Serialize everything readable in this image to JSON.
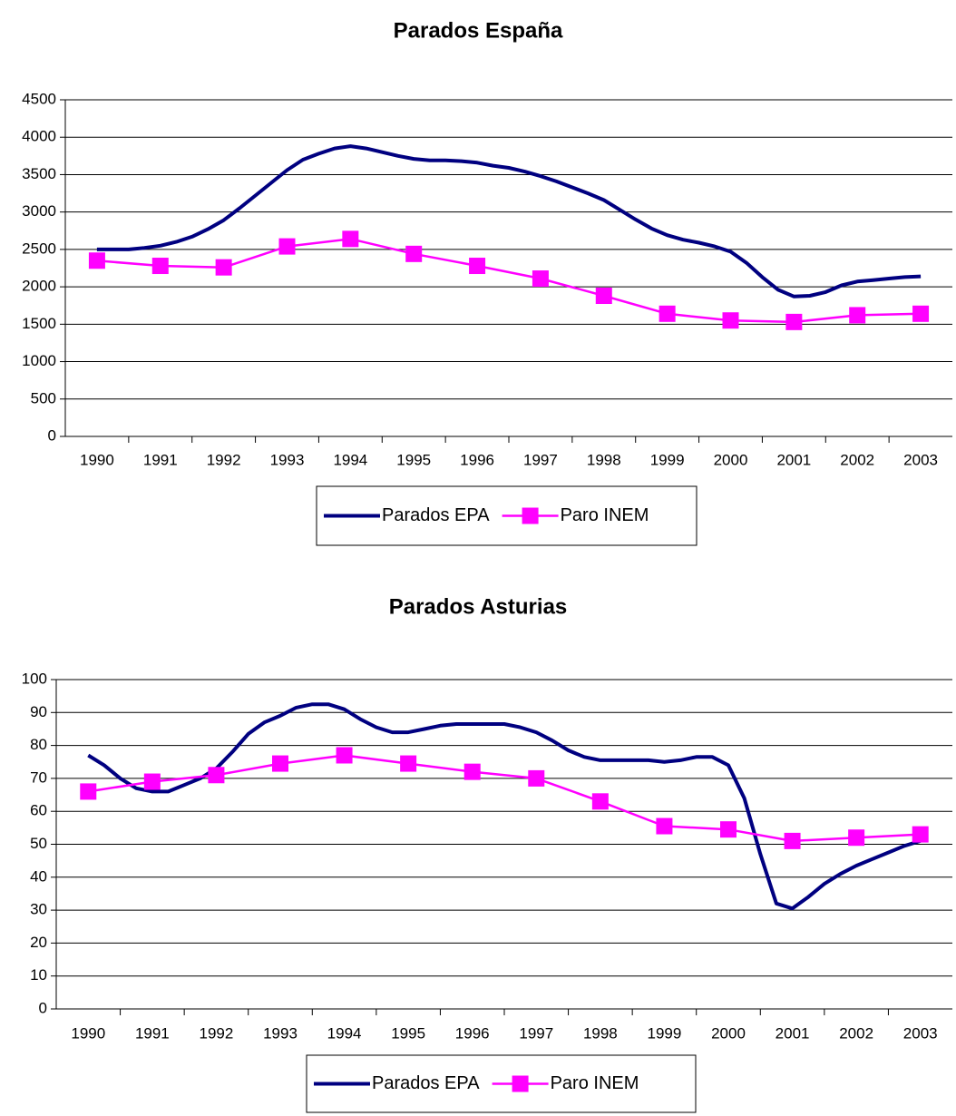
{
  "chart_data": [
    {
      "type": "line",
      "title": "Parados España",
      "xlim": [
        1989.5,
        2003.5
      ],
      "xticks": [
        1990,
        1991,
        1992,
        1993,
        1994,
        1995,
        1996,
        1997,
        1998,
        1999,
        2000,
        2001,
        2002,
        2003
      ],
      "ylim": [
        0,
        4500
      ],
      "yticks": [
        0,
        500,
        1000,
        1500,
        2000,
        2500,
        3000,
        3500,
        4000,
        4500
      ],
      "grid": true,
      "legend": "bottom",
      "series": [
        {
          "name": "Parados EPA",
          "color": "#000080",
          "marker": "none",
          "x": [
            1990,
            1990.25,
            1990.5,
            1990.75,
            1991,
            1991.25,
            1991.5,
            1991.75,
            1992,
            1992.25,
            1992.5,
            1992.75,
            1993,
            1993.25,
            1993.5,
            1993.75,
            1994,
            1994.25,
            1994.5,
            1994.75,
            1995,
            1995.25,
            1995.5,
            1995.75,
            1996,
            1996.25,
            1996.5,
            1996.75,
            1997,
            1997.25,
            1997.5,
            1997.75,
            1998,
            1998.25,
            1998.5,
            1998.75,
            1999,
            1999.25,
            1999.5,
            1999.75,
            2000,
            2000.25,
            2000.5,
            2000.75,
            2001,
            2001.25,
            2001.5,
            2001.75,
            2002,
            2002.25,
            2002.5,
            2002.75,
            2003
          ],
          "values": [
            2500,
            2500,
            2500,
            2520,
            2550,
            2600,
            2670,
            2770,
            2890,
            3050,
            3220,
            3390,
            3560,
            3700,
            3780,
            3850,
            3880,
            3850,
            3800,
            3750,
            3710,
            3690,
            3690,
            3680,
            3660,
            3620,
            3590,
            3540,
            3480,
            3410,
            3330,
            3250,
            3160,
            3030,
            2900,
            2780,
            2690,
            2630,
            2590,
            2540,
            2470,
            2320,
            2130,
            1960,
            1870,
            1880,
            1930,
            2020,
            2070,
            2090,
            2110,
            2130,
            2140
          ]
        },
        {
          "name": "Paro INEM",
          "color": "#ff00ff",
          "marker": "square",
          "x": [
            1990,
            1991,
            1992,
            1993,
            1994,
            1995,
            1996,
            1997,
            1998,
            1999,
            2000,
            2001,
            2002,
            2003
          ],
          "values": [
            2350,
            2280,
            2260,
            2540,
            2640,
            2440,
            2280,
            2110,
            1880,
            1640,
            1550,
            1530,
            1620,
            1640
          ]
        }
      ]
    },
    {
      "type": "line",
      "title": "Parados Asturias",
      "xlim": [
        1989.5,
        2003.5
      ],
      "xticks": [
        1990,
        1991,
        1992,
        1993,
        1994,
        1995,
        1996,
        1997,
        1998,
        1999,
        2000,
        2001,
        2002,
        2003
      ],
      "ylim": [
        0,
        100
      ],
      "yticks": [
        0,
        10,
        20,
        30,
        40,
        50,
        60,
        70,
        80,
        90,
        100
      ],
      "grid": true,
      "legend": "bottom",
      "series": [
        {
          "name": "Parados EPA",
          "color": "#000080",
          "marker": "none",
          "x": [
            1990,
            1990.25,
            1990.5,
            1990.75,
            1991,
            1991.25,
            1991.5,
            1991.75,
            1992,
            1992.25,
            1992.5,
            1992.75,
            1993,
            1993.25,
            1993.5,
            1993.75,
            1994,
            1994.25,
            1994.5,
            1994.75,
            1995,
            1995.25,
            1995.5,
            1995.75,
            1996,
            1996.25,
            1996.5,
            1996.75,
            1997,
            1997.25,
            1997.5,
            1997.75,
            1998,
            1998.25,
            1998.5,
            1998.75,
            1999,
            1999.25,
            1999.5,
            1999.75,
            2000,
            2000.25,
            2000.5,
            2000.75,
            2001,
            2001.25,
            2001.5,
            2001.75,
            2002,
            2002.25,
            2002.5,
            2002.75,
            2003
          ],
          "values": [
            77,
            74,
            70,
            67,
            66,
            66,
            68,
            70,
            73,
            78,
            83.5,
            87,
            89,
            91.5,
            92.5,
            92.5,
            91,
            88,
            85.5,
            84,
            84,
            85,
            86,
            86.5,
            86.5,
            86.5,
            86.5,
            85.5,
            84,
            81.5,
            78.5,
            76.5,
            75.5,
            75.5,
            75.5,
            75.5,
            75,
            75.5,
            76.5,
            76.5,
            74,
            64,
            47,
            32,
            30.5,
            34,
            38,
            41,
            43.5,
            45.5,
            47.5,
            49.5,
            51
          ]
        },
        {
          "name": "Paro INEM",
          "color": "#ff00ff",
          "marker": "square",
          "x": [
            1990,
            1991,
            1992,
            1993,
            1994,
            1995,
            1996,
            1997,
            1998,
            1999,
            2000,
            2001,
            2002,
            2003
          ],
          "values": [
            66,
            69,
            71,
            74.5,
            77,
            74.5,
            72,
            70,
            63,
            55.5,
            54.5,
            51,
            52,
            53
          ]
        }
      ]
    }
  ]
}
